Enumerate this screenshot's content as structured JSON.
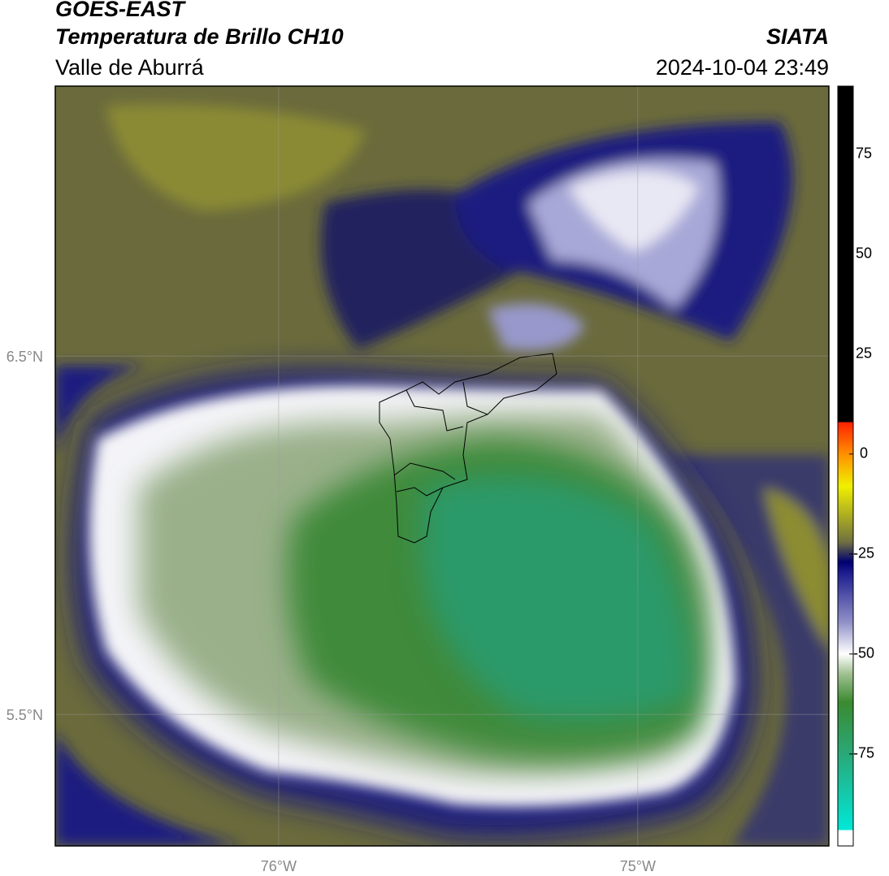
{
  "header": {
    "title": "GOES-EAST",
    "subtitle": "Temperatura de Brillo CH10",
    "region": "Valle de Aburrá",
    "source": "SIATA",
    "datetime": "2024-10-04 23:49"
  },
  "map": {
    "xlim": [
      -76.622,
      -74.468
    ],
    "ylim": [
      5.133,
      7.253
    ],
    "xticks": [
      {
        "value": -76,
        "label": "76°W"
      },
      {
        "value": -75,
        "label": "75°W"
      }
    ],
    "yticks": [
      {
        "value": 6.5,
        "label": "6.5°N"
      },
      {
        "value": 5.5,
        "label": "5.5°N"
      }
    ],
    "grid": true
  },
  "colorbar": {
    "lim": [
      -98,
      92
    ],
    "ticks": [
      75,
      50,
      25,
      0,
      -25,
      -50,
      -75
    ],
    "colormap": [
      {
        "value": -98,
        "color": "#ffffff"
      },
      {
        "value": -94,
        "color": "#ffffff"
      },
      {
        "value": -94,
        "color": "#00e8d8"
      },
      {
        "value": -75,
        "color": "#2aa878"
      },
      {
        "value": -62,
        "color": "#3a8a30"
      },
      {
        "value": -55,
        "color": "#a0c090"
      },
      {
        "value": -50,
        "color": "#ffffff"
      },
      {
        "value": -42,
        "color": "#9090c8"
      },
      {
        "value": -30,
        "color": "#202090"
      },
      {
        "value": -27,
        "color": "#000070"
      },
      {
        "value": -22,
        "color": "#707040"
      },
      {
        "value": -15,
        "color": "#b0b020"
      },
      {
        "value": -8,
        "color": "#f0f000"
      },
      {
        "value": 0,
        "color": "#ff9000"
      },
      {
        "value": 8,
        "color": "#ff2000"
      },
      {
        "value": 8,
        "color": "#000000"
      },
      {
        "value": 92,
        "color": "#000000"
      }
    ]
  }
}
